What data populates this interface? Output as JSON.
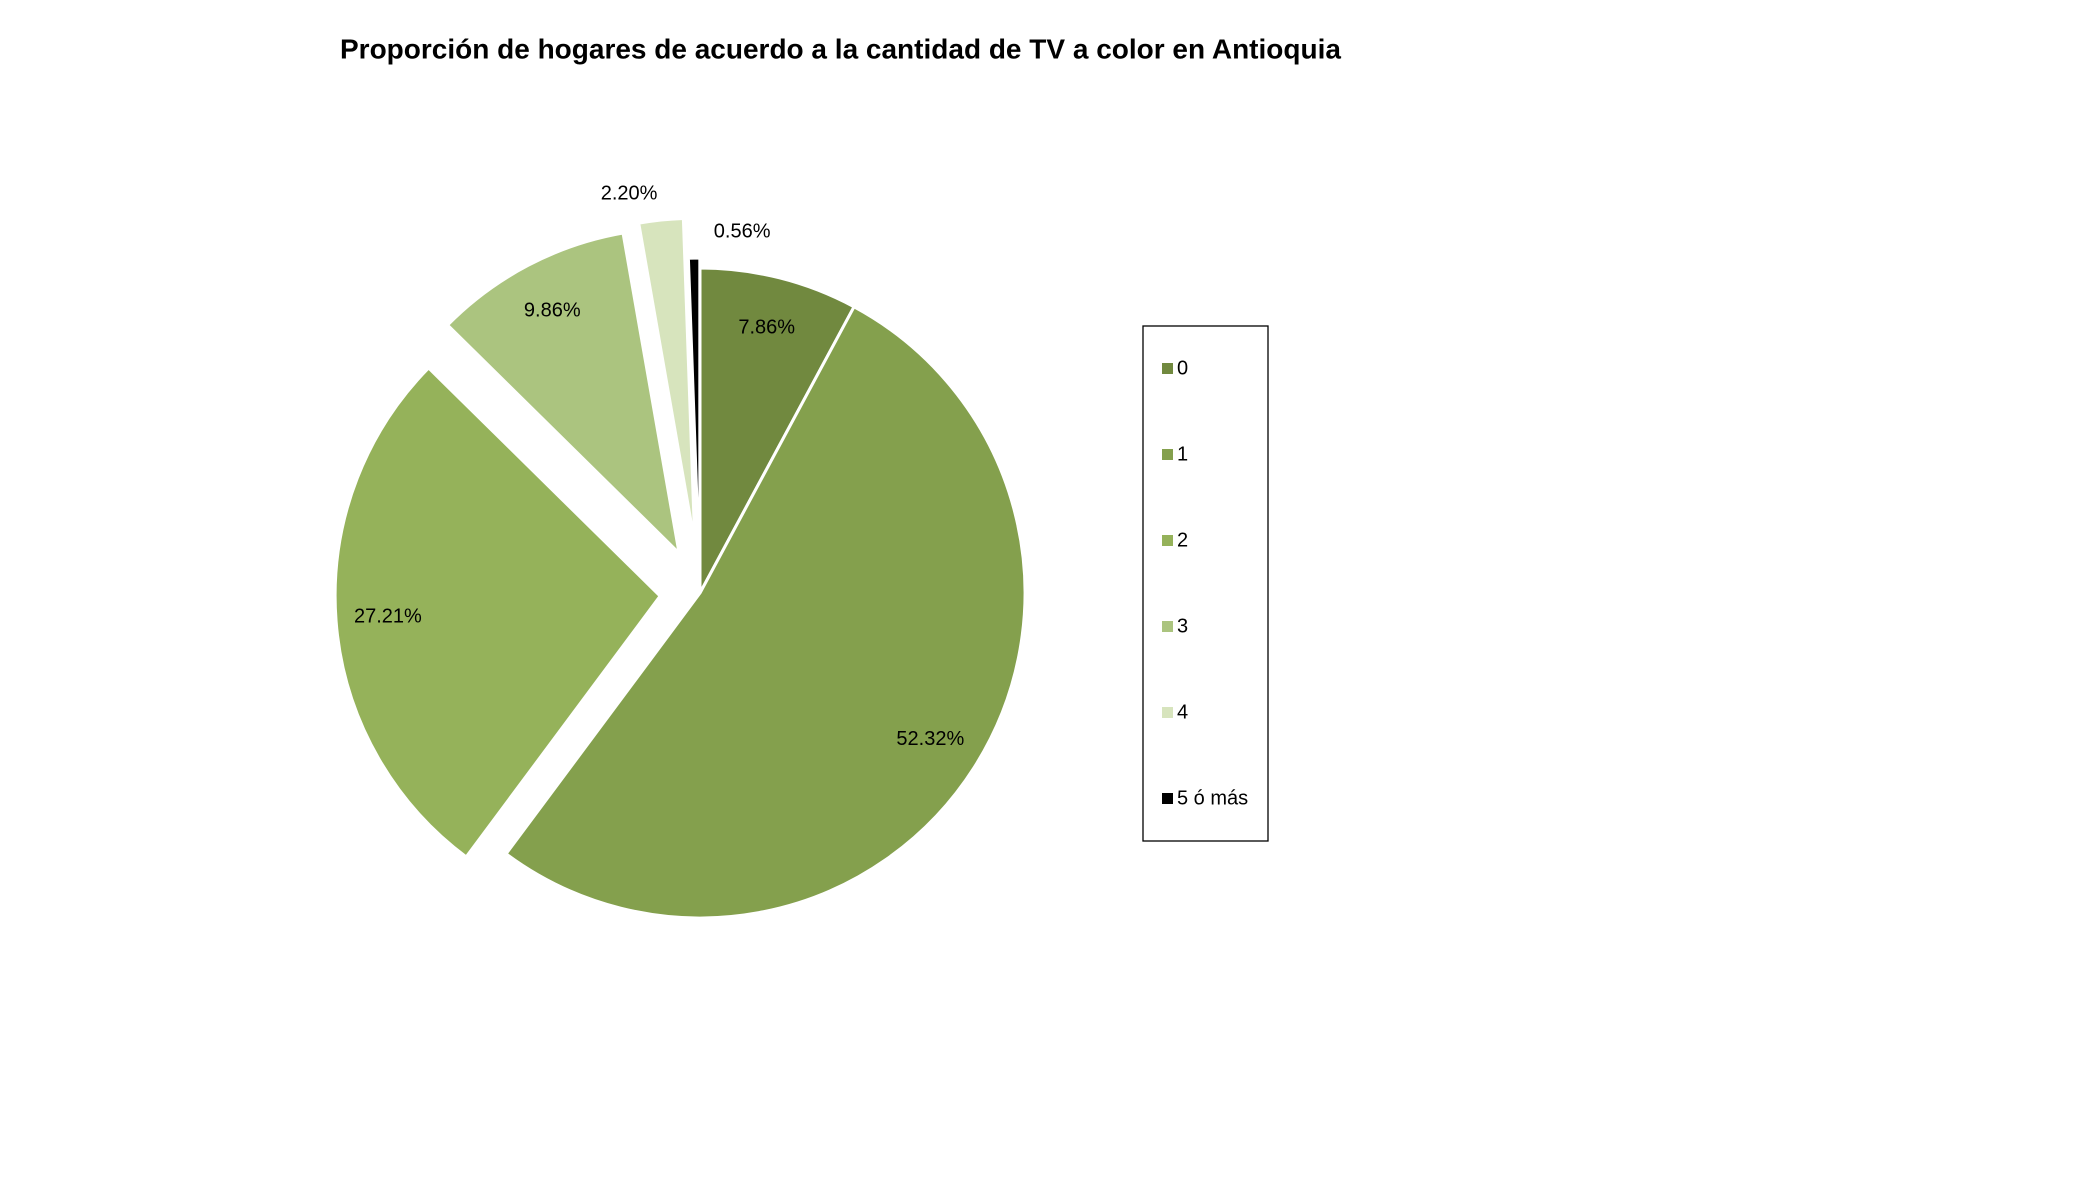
{
  "chart_data": {
    "type": "pie",
    "title": "Proporción de hogares de acuerdo a la cantidad de TV a color en Antioquia",
    "categories": [
      "0",
      "1",
      "2",
      "3",
      "4",
      "5 ó más"
    ],
    "values": [
      7.86,
      52.32,
      27.21,
      9.86,
      2.2,
      0.56
    ],
    "value_labels": [
      "7.86%",
      "52.32%",
      "27.21%",
      "9.86%",
      "2.20%",
      "0.56%"
    ],
    "colors": [
      "#71893f",
      "#84a04d",
      "#95b25a",
      "#abc47f",
      "#d7e4bd",
      "#000000"
    ],
    "legend": "right"
  }
}
